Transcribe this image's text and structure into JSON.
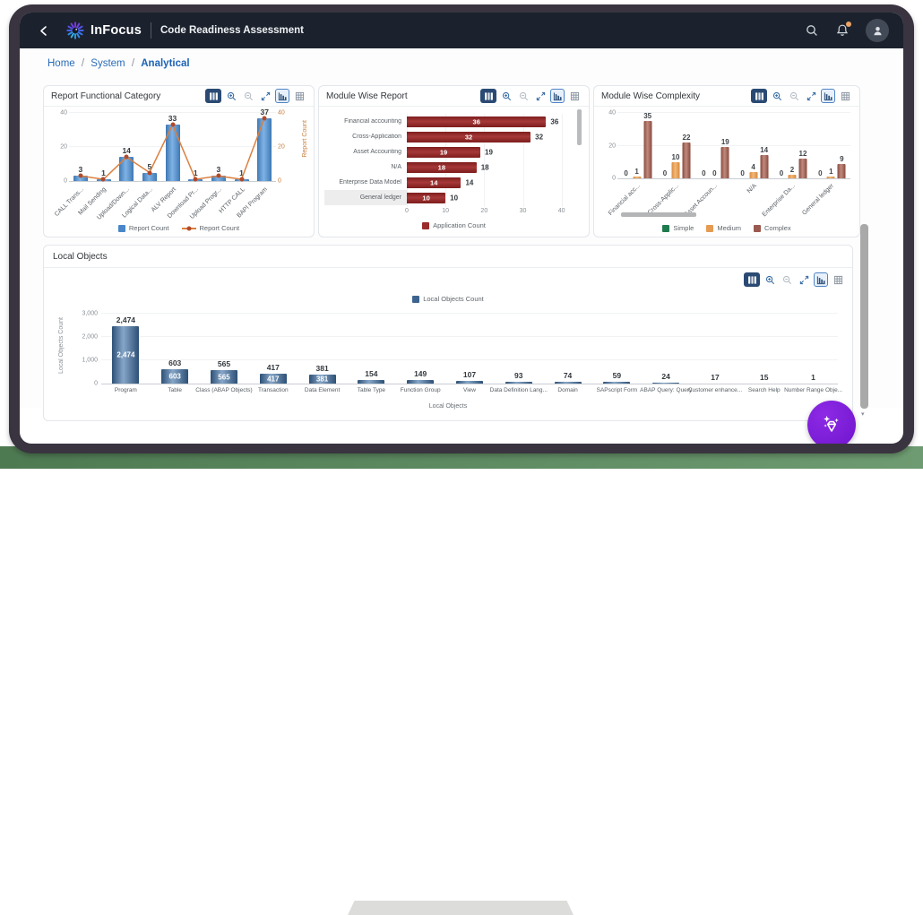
{
  "header": {
    "brand": "InFocus",
    "app_title": "Code Readiness Assessment"
  },
  "breadcrumb": {
    "separator": "/",
    "items": [
      {
        "label": "Home"
      },
      {
        "label": "System"
      },
      {
        "label": "Analytical"
      }
    ]
  },
  "panels": [
    {
      "title": "Report Functional Category"
    },
    {
      "title": "Module Wise Report"
    },
    {
      "title": "Module Wise Complexity"
    },
    {
      "title": "Local Objects"
    }
  ],
  "chart_toolbar": {
    "buttons": [
      "legend",
      "zoom-in",
      "zoom-out",
      "fullscreen",
      "chart-view",
      "table-view"
    ],
    "selected": "chart-view"
  },
  "colors": {
    "bar_blue": "#4a86c8",
    "bar_navy": "#3d6490",
    "bar_red": "#9c2b2b",
    "line_orange": "#dc8040",
    "marker_rust": "#b14a2a",
    "simple_green": "#1f7a4d",
    "medium_orange": "#e59b52",
    "complex_brick": "#9b5a50",
    "accent_blue": "#2b6cb8",
    "fab_purple": "#7b1fd8",
    "notification_orange": "#eda366"
  },
  "chart_data": [
    {
      "id": "report_functional_category",
      "type": "bar",
      "title": "Report Functional Category",
      "categories": [
        "CALL Trans...",
        "Mail Sending",
        "Upload/Down...",
        "Logical Data...",
        "ALV Report",
        "Download Pr...",
        "Upload Progr...",
        "HTTP CALL",
        "BAPI Program"
      ],
      "series": [
        {
          "name": "Report Count",
          "type": "bar",
          "color": "#4a86c8",
          "values": [
            3,
            1,
            14,
            5,
            33,
            1,
            3,
            1,
            37
          ]
        },
        {
          "name": "Report Count",
          "type": "line",
          "color": "#dc8040",
          "marker_color": "#b14a2a",
          "values": [
            3,
            1,
            14,
            5,
            33,
            1,
            3,
            1,
            37
          ]
        }
      ],
      "ylim": [
        0,
        40
      ],
      "yticks": [
        0,
        20,
        40
      ],
      "y2label": "Report Count",
      "y2ticks": [
        0,
        20,
        40
      ],
      "legend_position": "bottom"
    },
    {
      "id": "module_wise_report",
      "type": "bar",
      "orientation": "horizontal",
      "title": "Module Wise Report",
      "categories": [
        "Financial accounting",
        "Cross-Application",
        "Asset Accounting",
        "N/A",
        "Enterprise Data Model",
        "General ledger"
      ],
      "values": [
        36,
        32,
        19,
        18,
        14,
        10
      ],
      "series_name": "Application Count",
      "color": "#9c2b2b",
      "xlim": [
        0,
        41
      ],
      "xticks": [
        0,
        10,
        20,
        30,
        40
      ],
      "highlighted_category": "General ledger",
      "legend_position": "bottom"
    },
    {
      "id": "module_wise_complexity",
      "type": "bar",
      "grouped": true,
      "title": "Module Wise Complexity",
      "categories": [
        "Financial acc...",
        "Cross-Applic...",
        "Asset Accoun...",
        "N/A",
        "Enterprise Da...",
        "General ledger"
      ],
      "series": [
        {
          "name": "Simple",
          "color": "#1f7a4d",
          "values": [
            0,
            0,
            0,
            0,
            0,
            0
          ]
        },
        {
          "name": "Medium",
          "color": "#e59b52",
          "values": [
            1,
            10,
            0,
            4,
            2,
            1
          ]
        },
        {
          "name": "Complex",
          "color": "#9b5a50",
          "values": [
            35,
            22,
            19,
            14,
            12,
            9
          ]
        }
      ],
      "ylim": [
        0,
        40
      ],
      "yticks": [
        0,
        20,
        40
      ],
      "legend_position": "bottom"
    },
    {
      "id": "local_objects",
      "type": "bar",
      "title": "Local Objects",
      "categories": [
        "Program",
        "Table",
        "Class (ABAP Objects)",
        "Transaction",
        "Data Element",
        "Table Type",
        "Function Group",
        "View",
        "Data Definition Lang...",
        "Domain",
        "SAPscript Form",
        "ABAP Query: Query",
        "Customer enhance...",
        "Search Help",
        "Number Range Obje..."
      ],
      "values": [
        2474,
        603,
        565,
        417,
        381,
        154,
        149,
        107,
        93,
        74,
        59,
        24,
        17,
        15,
        1
      ],
      "value_labels": [
        "2,474",
        "603",
        "565",
        "417",
        "381",
        "154",
        "149",
        "107",
        "93",
        "74",
        "59",
        "24",
        "17",
        "15",
        "1"
      ],
      "legend": "Local Objects Count",
      "color": "#3d6490",
      "ylabel": "Local Objects Count",
      "xlabel": "Local Objects",
      "ylim": [
        0,
        3000
      ],
      "yticks_labels": [
        "3,000",
        "2,000",
        "1,000",
        "0"
      ],
      "legend_position": "top"
    }
  ]
}
